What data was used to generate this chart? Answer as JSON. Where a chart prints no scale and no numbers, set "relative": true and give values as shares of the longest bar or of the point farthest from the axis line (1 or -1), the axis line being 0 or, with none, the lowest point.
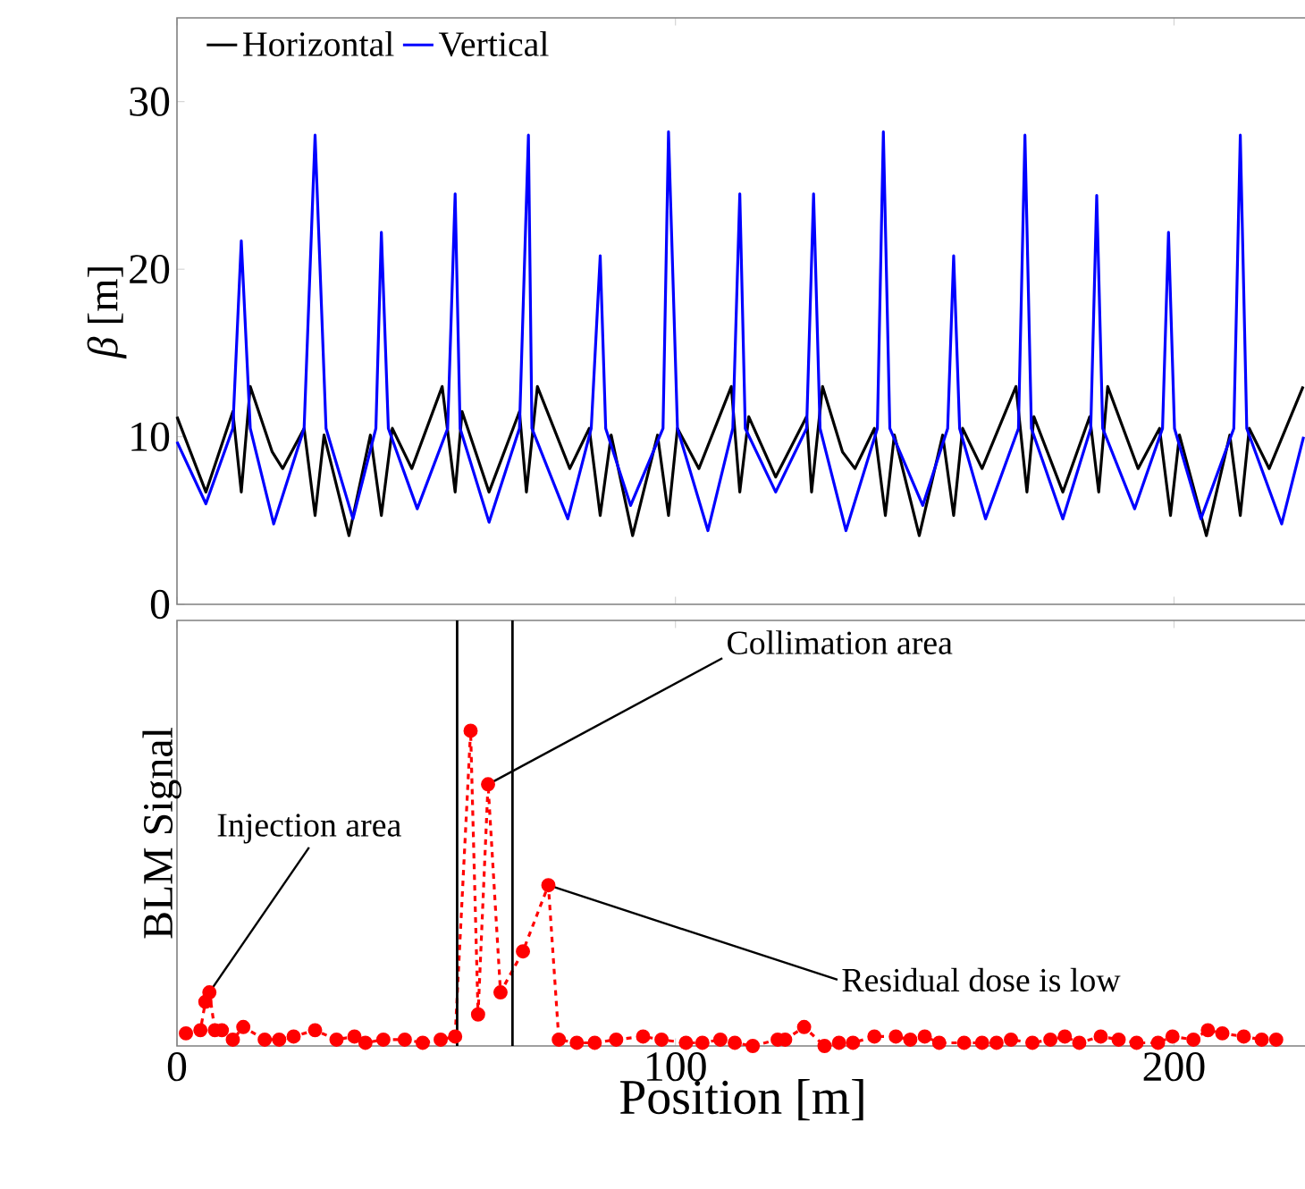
{
  "chart_data": [
    {
      "type": "line",
      "ylabel": "*β* [m]",
      "xlim": [
        0,
        227
      ],
      "xticks": [
        0,
        100,
        200
      ],
      "ylim": [
        0,
        35
      ],
      "yticks": [
        0,
        10,
        20,
        30
      ],
      "tick_labels": "y",
      "legend": "top left",
      "marker": "none",
      "line_style": "solid",
      "series": [
        {
          "name": "Horizontal",
          "color": "#000000",
          "x": [
            0,
            5.8,
            11.2,
            12.9,
            14.7,
            19.1,
            21.2,
            25.5,
            27.7,
            29.5,
            34.5,
            38.8,
            41.0,
            43.2,
            47.1,
            53.2,
            55.8,
            57.2,
            62.6,
            68.7,
            70.1,
            72.3,
            78.8,
            82.7,
            84.9,
            87.1,
            91.4,
            96.4,
            98.6,
            100.4,
            104.7,
            111.2,
            112.9,
            114.7,
            120.1,
            126.3,
            127.3,
            129.5,
            133.5,
            136.0,
            139.9,
            142.1,
            143.9,
            148.9,
            153.6,
            155.8,
            157.6,
            161.5,
            168.3,
            170.5,
            171.9,
            177.7,
            183.1,
            184.9,
            186.7,
            192.8,
            197.1,
            199.3,
            201.1,
            206.5,
            211.2,
            213.3,
            215.1,
            219.1,
            225.9
          ],
          "values": [
            11.2,
            6.7,
            11.5,
            6.7,
            13.0,
            9.1,
            8.1,
            10.5,
            5.3,
            10.1,
            4.1,
            10.1,
            5.3,
            10.5,
            8.1,
            13.0,
            6.7,
            11.5,
            6.7,
            11.5,
            6.7,
            13.0,
            8.1,
            10.5,
            5.3,
            10.1,
            4.1,
            10.1,
            5.3,
            10.5,
            8.1,
            13.0,
            6.7,
            11.2,
            7.6,
            11.2,
            6.7,
            13.0,
            9.1,
            8.1,
            10.5,
            5.3,
            10.1,
            4.1,
            10.1,
            5.3,
            10.5,
            8.1,
            13.0,
            6.7,
            11.2,
            6.7,
            11.2,
            6.7,
            13.0,
            8.1,
            10.5,
            5.3,
            10.1,
            4.1,
            10.1,
            5.3,
            10.5,
            8.1,
            13.0
          ]
        },
        {
          "name": "Vertical",
          "color": "#0000ff",
          "x": [
            0,
            5.8,
            11.2,
            12.9,
            14.7,
            19.4,
            25.5,
            27.7,
            29.9,
            35.3,
            39.9,
            41.0,
            42.4,
            48.2,
            54.3,
            55.8,
            56.8,
            62.6,
            68.7,
            70.5,
            71.2,
            78.4,
            83.1,
            84.9,
            86.0,
            91.0,
            97.5,
            98.6,
            100.4,
            106.5,
            111.5,
            112.9,
            114.0,
            120.1,
            126.3,
            127.7,
            129.0,
            134.2,
            140.5,
            141.7,
            143.0,
            149.6,
            154.6,
            155.8,
            157.0,
            162.2,
            168.8,
            170.1,
            171.4,
            177.7,
            183.3,
            184.5,
            185.7,
            192.1,
            197.7,
            198.9,
            200.1,
            205.4,
            212.0,
            213.3,
            214.6,
            221.6,
            226
          ],
          "values": [
            9.7,
            6.0,
            10.5,
            21.7,
            10.5,
            4.8,
            10.5,
            28.0,
            10.5,
            5.1,
            10.5,
            22.2,
            10.5,
            5.7,
            10.5,
            24.5,
            10.5,
            4.9,
            10.5,
            28.0,
            10.5,
            5.1,
            10.5,
            20.8,
            10.5,
            5.9,
            10.5,
            28.2,
            10.5,
            4.4,
            10.5,
            24.5,
            10.5,
            6.7,
            10.5,
            24.5,
            10.5,
            4.4,
            10.5,
            28.2,
            10.5,
            5.9,
            10.5,
            20.8,
            10.5,
            5.1,
            10.5,
            28.0,
            10.5,
            5.1,
            10.5,
            24.4,
            10.5,
            5.7,
            10.5,
            22.2,
            10.5,
            5.1,
            10.5,
            28.0,
            10.5,
            4.8,
            10.0
          ]
        }
      ]
    },
    {
      "type": "line",
      "relative": true,
      "xlabel": "Position [m]",
      "ylabel": "BLM Signal",
      "xlim": [
        0,
        227
      ],
      "xticks": [
        0,
        100,
        200
      ],
      "marker": "circle",
      "line_style": "dashed",
      "ref_lines": [
        {
          "axis": "x",
          "value": 56.2,
          "color": "#000000"
        },
        {
          "axis": "x",
          "value": 67.3,
          "color": "#000000"
        }
      ],
      "annotations": [
        {
          "text": "Injection area",
          "x": 6.5,
          "y": 0.17
        },
        {
          "text": "Collimation area",
          "x": 62.4,
          "y": 0.83
        },
        {
          "text": "Residual dose is low",
          "x": 74.5,
          "y": 0.51
        }
      ],
      "series": [
        {
          "color": "#ff0000",
          "x": [
            1.8,
            4.7,
            5.7,
            6.5,
            7.6,
            9.0,
            11.2,
            13.3,
            17.6,
            20.5,
            23.4,
            27.7,
            32.0,
            35.6,
            37.8,
            41.4,
            45.7,
            49.3,
            52.9,
            55.8,
            58.9,
            60.4,
            62.4,
            64.9,
            69.4,
            74.5,
            76.6,
            80.2,
            83.8,
            88.1,
            93.5,
            97.2,
            102.1,
            105.4,
            109.0,
            111.9,
            115.5,
            120.5,
            122.0,
            125.8,
            129.9,
            132.8,
            135.6,
            139.9,
            144.2,
            147.1,
            150.0,
            152.9,
            157.9,
            161.5,
            164.4,
            167.3,
            171.6,
            175.2,
            178.1,
            181.0,
            185.3,
            188.9,
            192.5,
            196.8,
            199.7,
            203.9,
            206.8,
            209.7,
            214.0,
            217.6,
            220.5
          ],
          "values": [
            0.04,
            0.05,
            0.14,
            0.17,
            0.05,
            0.05,
            0.02,
            0.06,
            0.02,
            0.02,
            0.03,
            0.05,
            0.02,
            0.03,
            0.01,
            0.02,
            0.02,
            0.01,
            0.02,
            0.03,
            1,
            0.1,
            0.83,
            0.17,
            0.3,
            0.51,
            0.02,
            0.01,
            0.01,
            0.02,
            0.03,
            0.02,
            0.01,
            0.01,
            0.02,
            0.01,
            0,
            0.02,
            0.02,
            0.06,
            0,
            0.01,
            0.01,
            0.03,
            0.03,
            0.02,
            0.03,
            0.01,
            0.01,
            0.01,
            0.01,
            0.02,
            0.01,
            0.02,
            0.03,
            0.01,
            0.03,
            0.02,
            0.01,
            0.01,
            0.03,
            0.02,
            0.05,
            0.04,
            0.03,
            0.02,
            0.02
          ]
        }
      ]
    }
  ]
}
